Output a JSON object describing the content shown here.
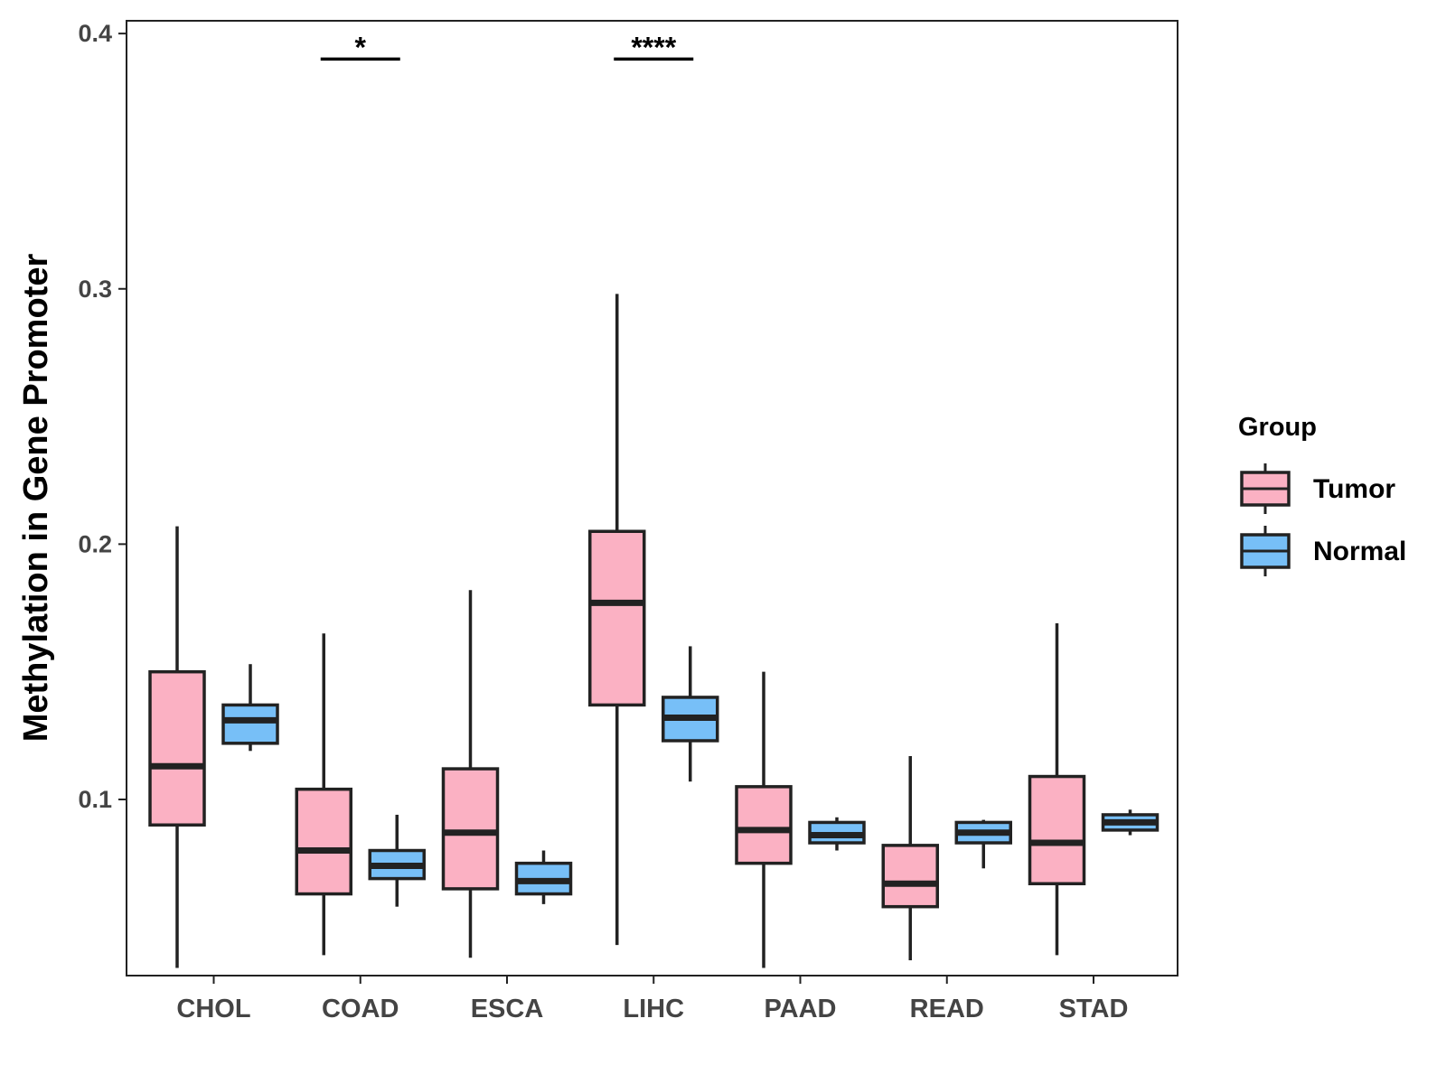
{
  "chart_data": {
    "type": "boxplot",
    "ylabel": "Methylation in Gene Promoter",
    "xlabel": "",
    "ylim": [
      0.031,
      0.405
    ],
    "yticks": [
      0.1,
      0.2,
      0.3,
      0.4
    ],
    "ytick_labels": [
      "0.1",
      "0.2",
      "0.3",
      "0.4"
    ],
    "categories": [
      "CHOL",
      "COAD",
      "ESCA",
      "LIHC",
      "PAAD",
      "READ",
      "STAD"
    ],
    "legend": {
      "title": "Group",
      "position": "right",
      "entries": [
        {
          "name": "Tumor",
          "color": "#fbb1c3"
        },
        {
          "name": "Normal",
          "color": "#77bff7"
        }
      ]
    },
    "series": [
      {
        "name": "Tumor",
        "color": "#fbb1c3",
        "boxes": [
          {
            "category": "CHOL",
            "min": 0.034,
            "q1": 0.09,
            "median": 0.113,
            "q3": 0.15,
            "max": 0.207
          },
          {
            "category": "COAD",
            "min": 0.039,
            "q1": 0.063,
            "median": 0.08,
            "q3": 0.104,
            "max": 0.165
          },
          {
            "category": "ESCA",
            "min": 0.038,
            "q1": 0.065,
            "median": 0.087,
            "q3": 0.112,
            "max": 0.182
          },
          {
            "category": "LIHC",
            "min": 0.043,
            "q1": 0.137,
            "median": 0.177,
            "q3": 0.205,
            "max": 0.298
          },
          {
            "category": "PAAD",
            "min": 0.034,
            "q1": 0.075,
            "median": 0.088,
            "q3": 0.105,
            "max": 0.15
          },
          {
            "category": "READ",
            "min": 0.037,
            "q1": 0.058,
            "median": 0.067,
            "q3": 0.082,
            "max": 0.117
          },
          {
            "category": "STAD",
            "min": 0.039,
            "q1": 0.067,
            "median": 0.083,
            "q3": 0.109,
            "max": 0.169
          }
        ]
      },
      {
        "name": "Normal",
        "color": "#77bff7",
        "boxes": [
          {
            "category": "CHOL",
            "min": 0.119,
            "q1": 0.122,
            "median": 0.131,
            "q3": 0.137,
            "max": 0.153
          },
          {
            "category": "COAD",
            "min": 0.058,
            "q1": 0.069,
            "median": 0.074,
            "q3": 0.08,
            "max": 0.094
          },
          {
            "category": "ESCA",
            "min": 0.059,
            "q1": 0.063,
            "median": 0.068,
            "q3": 0.075,
            "max": 0.08
          },
          {
            "category": "LIHC",
            "min": 0.107,
            "q1": 0.123,
            "median": 0.132,
            "q3": 0.14,
            "max": 0.16
          },
          {
            "category": "PAAD",
            "min": 0.08,
            "q1": 0.083,
            "median": 0.086,
            "q3": 0.091,
            "max": 0.093
          },
          {
            "category": "READ",
            "min": 0.073,
            "q1": 0.083,
            "median": 0.087,
            "q3": 0.091,
            "max": 0.092
          },
          {
            "category": "STAD",
            "min": 0.086,
            "q1": 0.088,
            "median": 0.091,
            "q3": 0.094,
            "max": 0.096
          }
        ]
      }
    ],
    "significance": [
      {
        "category": "COAD",
        "label": "*",
        "y": 0.39
      },
      {
        "category": "LIHC",
        "label": "****",
        "y": 0.39
      }
    ]
  }
}
